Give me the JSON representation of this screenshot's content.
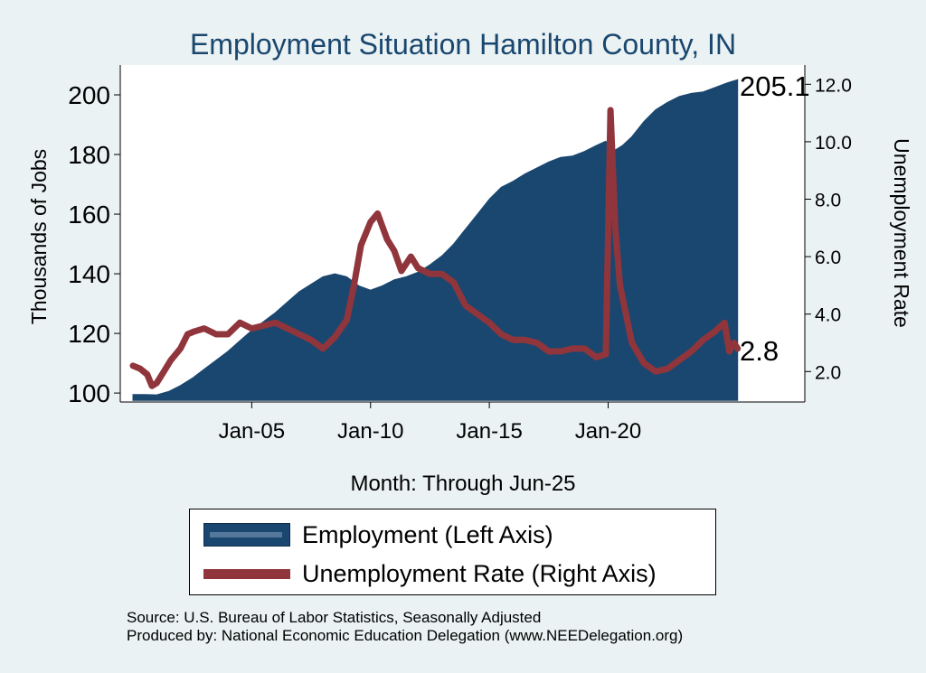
{
  "colors": {
    "background": "#eaf2f3",
    "plot_background": "#ffffff",
    "title": "#1a476f",
    "employment_fill": "#1a476f",
    "unemployment_line": "#90353b"
  },
  "chart_data": {
    "type": "area",
    "title": "Employment Situation Hamilton  County, IN",
    "xlabel": "Month: Through Jun-25",
    "ylabel_left": "Thousands of Jobs",
    "ylabel_right": "Unemployment Rate",
    "x_tick_labels": [
      "Jan-05",
      "Jan-10",
      "Jan-15",
      "Jan-20"
    ],
    "y_left_ticks": [
      "100",
      "120",
      "140",
      "160",
      "180",
      "200"
    ],
    "y_right_ticks": [
      "2.0",
      "4.0",
      "6.0",
      "8.0",
      "10.0",
      "12.0"
    ],
    "y_left_range": [
      97,
      210
    ],
    "y_right_range": [
      0.94,
      12.67
    ],
    "x_range": [
      2000.0,
      2025.5
    ],
    "end_labels": {
      "employment": "205.1",
      "unemployment": "2.8"
    },
    "series": [
      {
        "name": "Employment (Left Axis)",
        "axis": "left",
        "type": "area",
        "points": [
          [
            2000.0,
            99.5
          ],
          [
            2000.5,
            99.5
          ],
          [
            2001.0,
            99.4
          ],
          [
            2001.5,
            100.5
          ],
          [
            2002.0,
            102.5
          ],
          [
            2002.5,
            105.0
          ],
          [
            2003.0,
            108.0
          ],
          [
            2003.5,
            111.0
          ],
          [
            2004.0,
            114.0
          ],
          [
            2004.5,
            117.5
          ],
          [
            2005.0,
            121.0
          ],
          [
            2005.5,
            124.0
          ],
          [
            2006.0,
            127.0
          ],
          [
            2006.5,
            130.5
          ],
          [
            2007.0,
            134.0
          ],
          [
            2007.5,
            136.5
          ],
          [
            2008.0,
            139.0
          ],
          [
            2008.5,
            140.0
          ],
          [
            2009.0,
            139.0
          ],
          [
            2009.5,
            136.0
          ],
          [
            2010.0,
            134.5
          ],
          [
            2010.5,
            136.0
          ],
          [
            2011.0,
            138.0
          ],
          [
            2011.5,
            139.0
          ],
          [
            2012.0,
            140.5
          ],
          [
            2012.5,
            143.0
          ],
          [
            2013.0,
            146.0
          ],
          [
            2013.5,
            150.0
          ],
          [
            2014.0,
            155.0
          ],
          [
            2014.5,
            160.0
          ],
          [
            2015.0,
            165.0
          ],
          [
            2015.5,
            169.0
          ],
          [
            2016.0,
            171.0
          ],
          [
            2016.5,
            173.5
          ],
          [
            2017.0,
            175.5
          ],
          [
            2017.5,
            177.5
          ],
          [
            2018.0,
            179.0
          ],
          [
            2018.5,
            179.5
          ],
          [
            2019.0,
            181.0
          ],
          [
            2019.5,
            183.0
          ],
          [
            2019.9,
            184.5
          ],
          [
            2020.2,
            181.0
          ],
          [
            2020.6,
            183.0
          ],
          [
            2021.0,
            186.0
          ],
          [
            2021.5,
            191.0
          ],
          [
            2022.0,
            195.0
          ],
          [
            2022.5,
            197.5
          ],
          [
            2023.0,
            199.5
          ],
          [
            2023.5,
            200.5
          ],
          [
            2024.0,
            201.0
          ],
          [
            2024.5,
            202.5
          ],
          [
            2025.0,
            204.0
          ],
          [
            2025.45,
            205.1
          ]
        ]
      },
      {
        "name": "Unemployment Rate (Right Axis)",
        "axis": "right",
        "type": "line",
        "points": [
          [
            2000.0,
            2.2
          ],
          [
            2000.3,
            2.1
          ],
          [
            2000.6,
            1.9
          ],
          [
            2000.8,
            1.5
          ],
          [
            2001.0,
            1.6
          ],
          [
            2001.3,
            2.0
          ],
          [
            2001.6,
            2.4
          ],
          [
            2002.0,
            2.8
          ],
          [
            2002.3,
            3.3
          ],
          [
            2002.6,
            3.4
          ],
          [
            2003.0,
            3.5
          ],
          [
            2003.5,
            3.3
          ],
          [
            2004.0,
            3.3
          ],
          [
            2004.5,
            3.7
          ],
          [
            2005.0,
            3.5
          ],
          [
            2005.5,
            3.6
          ],
          [
            2006.0,
            3.7
          ],
          [
            2006.5,
            3.5
          ],
          [
            2007.0,
            3.3
          ],
          [
            2007.5,
            3.1
          ],
          [
            2008.0,
            2.8
          ],
          [
            2008.5,
            3.2
          ],
          [
            2009.0,
            3.8
          ],
          [
            2009.3,
            5.0
          ],
          [
            2009.6,
            6.4
          ],
          [
            2010.0,
            7.2
          ],
          [
            2010.3,
            7.5
          ],
          [
            2010.7,
            6.6
          ],
          [
            2011.0,
            6.2
          ],
          [
            2011.3,
            5.5
          ],
          [
            2011.7,
            6.0
          ],
          [
            2012.0,
            5.6
          ],
          [
            2012.5,
            5.4
          ],
          [
            2013.0,
            5.4
          ],
          [
            2013.5,
            5.1
          ],
          [
            2014.0,
            4.3
          ],
          [
            2014.5,
            4.0
          ],
          [
            2015.0,
            3.7
          ],
          [
            2015.5,
            3.3
          ],
          [
            2016.0,
            3.1
          ],
          [
            2016.5,
            3.1
          ],
          [
            2017.0,
            3.0
          ],
          [
            2017.5,
            2.7
          ],
          [
            2018.0,
            2.7
          ],
          [
            2018.5,
            2.8
          ],
          [
            2019.0,
            2.8
          ],
          [
            2019.5,
            2.5
          ],
          [
            2019.9,
            2.6
          ],
          [
            2020.1,
            11.1
          ],
          [
            2020.3,
            7.0
          ],
          [
            2020.5,
            5.0
          ],
          [
            2020.8,
            3.8
          ],
          [
            2021.0,
            3.0
          ],
          [
            2021.5,
            2.3
          ],
          [
            2022.0,
            2.0
          ],
          [
            2022.5,
            2.1
          ],
          [
            2023.0,
            2.4
          ],
          [
            2023.5,
            2.7
          ],
          [
            2024.0,
            3.1
          ],
          [
            2024.5,
            3.4
          ],
          [
            2024.9,
            3.7
          ],
          [
            2025.1,
            2.7
          ],
          [
            2025.3,
            3.0
          ],
          [
            2025.45,
            2.8
          ]
        ]
      }
    ],
    "legend_position": "bottom",
    "grid": false
  },
  "legend": {
    "employment_label": "Employment (Left Axis)",
    "unemployment_label": "Unemployment Rate (Right Axis)"
  },
  "footer": {
    "source": "Source: U.S. Bureau of Labor Statistics, Seasonally Adjusted",
    "produced_by": "Produced by: National Economic Education Delegation (www.NEEDelegation.org)"
  }
}
